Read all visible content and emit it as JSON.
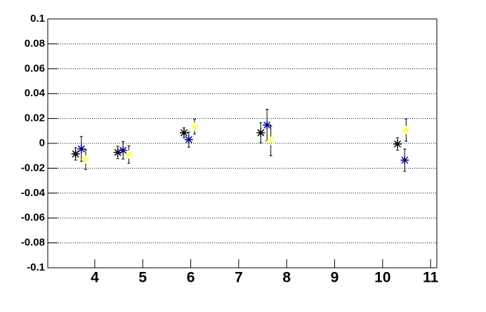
{
  "chart_data": {
    "type": "scatter",
    "series": [
      {
        "color": "#000000",
        "x": [
          3.6,
          4.48,
          5.86,
          7.46,
          10.31
        ],
        "values": [
          -0.0085,
          -0.0073,
          0.0085,
          0.0085,
          -0.0005
        ],
        "errors": [
          0.005,
          0.005,
          0.004,
          0.008,
          0.005
        ]
      },
      {
        "color": "#00008b",
        "x": [
          3.72,
          4.59,
          5.96,
          7.59,
          10.46
        ],
        "values": [
          -0.0045,
          -0.0056,
          0.003,
          0.0147,
          -0.0135
        ],
        "errors": [
          0.01,
          0.007,
          0.006,
          0.0127,
          0.009
        ]
      },
      {
        "color": "#ffff66",
        "x": [
          3.81,
          4.71,
          6.08,
          7.67,
          10.49
        ],
        "values": [
          -0.013,
          -0.009,
          0.0135,
          0.002,
          0.0107
        ],
        "errors": [
          0.008,
          0.007,
          0.006,
          0.012,
          0.009
        ]
      }
    ],
    "xlim": [
      3.02,
      11.13
    ],
    "xticks": [
      4,
      5,
      6,
      7,
      8,
      9,
      10,
      11
    ],
    "ylim": [
      -0.1,
      0.1
    ],
    "yticks": [
      -0.1,
      -0.08,
      -0.06,
      -0.04,
      -0.02,
      0,
      0.02,
      0.04,
      0.06,
      0.08,
      0.1
    ],
    "grid": true
  }
}
